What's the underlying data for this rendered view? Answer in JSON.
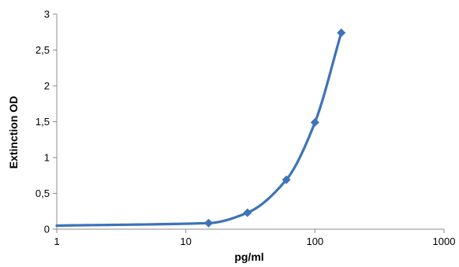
{
  "chart_data": {
    "type": "scatter",
    "title": "",
    "xlabel": "pg/ml",
    "ylabel": "Extinction OD",
    "x_scale": "log",
    "xlim": [
      1,
      1000
    ],
    "ylim": [
      0,
      3
    ],
    "x_ticks": [
      {
        "value": 1,
        "label": "1"
      },
      {
        "value": 10,
        "label": "10"
      },
      {
        "value": 100,
        "label": "100"
      },
      {
        "value": 1000,
        "label": "1000"
      }
    ],
    "y_ticks": [
      {
        "value": 0,
        "label": "0"
      },
      {
        "value": 0.5,
        "label": "0,5"
      },
      {
        "value": 1,
        "label": "1"
      },
      {
        "value": 1.5,
        "label": "1,5"
      },
      {
        "value": 2,
        "label": "2"
      },
      {
        "value": 2.5,
        "label": "2,5"
      },
      {
        "value": 3,
        "label": "3"
      }
    ],
    "grid": false,
    "legend": "none",
    "marker": "diamond",
    "line": "smooth",
    "color": "#3d73b8",
    "series": [
      {
        "x": [
          1,
          15,
          30,
          60,
          100,
          160
        ],
        "y": [
          0.05,
          0.085,
          0.23,
          0.69,
          1.49,
          2.74
        ]
      }
    ]
  }
}
